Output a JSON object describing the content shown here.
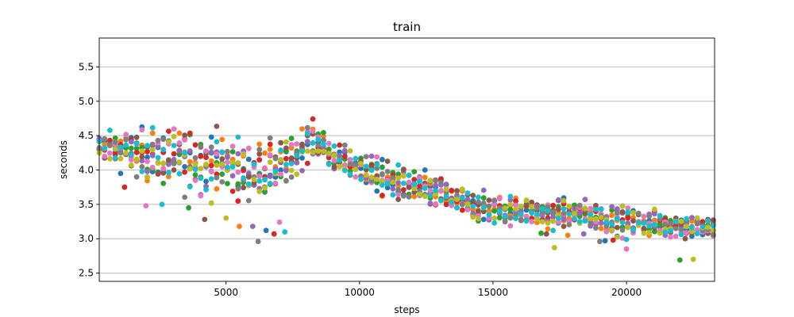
{
  "chart_data": {
    "type": "scatter",
    "title": "train",
    "xlabel": "steps",
    "ylabel": "seconds",
    "xlim": [
      250,
      23300
    ],
    "ylim": [
      2.38,
      5.92
    ],
    "x_ticks": [
      5000,
      10000,
      15000,
      20000
    ],
    "x_tick_labels": [
      "5000",
      "10000",
      "15000",
      "20000"
    ],
    "y_ticks": [
      2.5,
      3.0,
      3.5,
      4.0,
      4.5,
      5.0,
      5.5
    ],
    "y_tick_labels": [
      "2.5",
      "3.0",
      "3.5",
      "4.0",
      "4.5",
      "5.0",
      "5.5"
    ],
    "grid": "horizontal",
    "marker": "circle",
    "colors": [
      "#1f77b4",
      "#ff7f0e",
      "#2ca02c",
      "#d62728",
      "#9467bd",
      "#8c564b",
      "#e377c2",
      "#7f7f7f",
      "#bcbd22",
      "#17becf"
    ],
    "x_interval": 200,
    "trend": [
      [
        250,
        4.35
      ],
      [
        1000,
        4.3
      ],
      [
        2000,
        4.22
      ],
      [
        3000,
        4.17
      ],
      [
        4000,
        4.13
      ],
      [
        5000,
        4.07
      ],
      [
        6000,
        3.98
      ],
      [
        7000,
        4.05
      ],
      [
        7500,
        4.15
      ],
      [
        8000,
        4.42
      ],
      [
        8500,
        4.42
      ],
      [
        9000,
        4.17
      ],
      [
        10000,
        4.05
      ],
      [
        11000,
        3.85
      ],
      [
        12000,
        3.75
      ],
      [
        13000,
        3.65
      ],
      [
        14000,
        3.5
      ],
      [
        15000,
        3.42
      ],
      [
        16000,
        3.42
      ],
      [
        17000,
        3.35
      ],
      [
        18000,
        3.37
      ],
      [
        19000,
        3.32
      ],
      [
        20000,
        3.25
      ],
      [
        21000,
        3.22
      ],
      [
        22000,
        3.2
      ],
      [
        23300,
        3.15
      ]
    ],
    "noise": [
      [
        250,
        0.09
      ],
      [
        2000,
        0.18
      ],
      [
        4000,
        0.23
      ],
      [
        6000,
        0.2
      ],
      [
        7500,
        0.15
      ],
      [
        9000,
        0.1
      ],
      [
        11000,
        0.13
      ],
      [
        15000,
        0.1
      ],
      [
        20000,
        0.1
      ],
      [
        23300,
        0.08
      ]
    ],
    "low_outliers": [
      [
        1200,
        3.75
      ],
      [
        2000,
        3.48
      ],
      [
        2600,
        3.5
      ],
      [
        3600,
        3.45
      ],
      [
        4200,
        3.28
      ],
      [
        5000,
        3.3
      ],
      [
        5500,
        3.18
      ],
      [
        6000,
        3.18
      ],
      [
        6200,
        2.96
      ],
      [
        6500,
        3.12
      ],
      [
        6800,
        3.07
      ],
      [
        7000,
        3.24
      ],
      [
        7200,
        3.1
      ],
      [
        16800,
        3.08
      ],
      [
        17000,
        3.07
      ],
      [
        17300,
        2.87
      ],
      [
        17800,
        3.05
      ],
      [
        18400,
        3.07
      ],
      [
        19000,
        2.96
      ],
      [
        19200,
        2.97
      ],
      [
        19500,
        2.98
      ],
      [
        20000,
        2.85
      ],
      [
        20000,
        2.99
      ],
      [
        22000,
        2.69
      ],
      [
        22200,
        3.0
      ],
      [
        22500,
        2.7
      ]
    ]
  }
}
